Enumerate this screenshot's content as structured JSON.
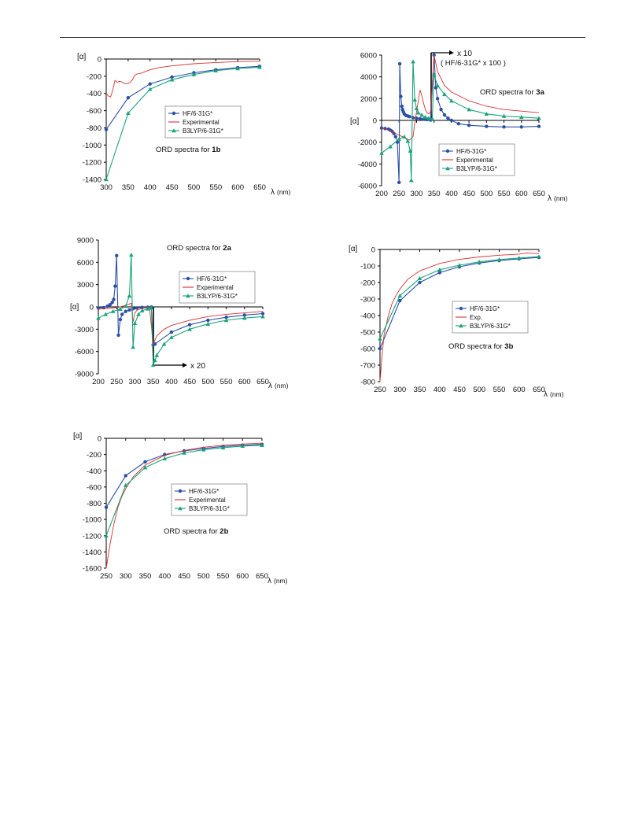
{
  "colors": {
    "hf": "#2a4fa8",
    "exp": "#d93030",
    "b3": "#1aa37a",
    "axis": "#000000"
  },
  "chart_data": [
    {
      "id": "1b",
      "type": "line",
      "title_prefix": "ORD spectra for ",
      "title_bold": "1b",
      "ylabel": "[α]",
      "xlabel": "λ",
      "xunit": "(nm)",
      "xlim": [
        300,
        650
      ],
      "ylim": [
        -1400,
        0
      ],
      "xticks": [
        300,
        350,
        400,
        450,
        500,
        550,
        600,
        650
      ],
      "yticks": [
        0,
        -200,
        -400,
        -600,
        -800,
        -1000,
        -1200,
        -1400
      ],
      "legend": [
        "HF/6-31G*",
        "Experimental",
        "B3LYP/6-31G*"
      ],
      "series": [
        {
          "name": "HF/6-31G*",
          "x": [
            300,
            350,
            400,
            450,
            500,
            550,
            600,
            650
          ],
          "y": [
            -820,
            -450,
            -290,
            -210,
            -160,
            -125,
            -100,
            -85
          ]
        },
        {
          "name": "Experimental",
          "x": [
            300,
            305,
            310,
            315,
            320,
            325,
            330,
            335,
            340,
            345,
            350,
            355,
            360,
            365,
            370,
            375,
            380,
            390,
            400,
            420,
            450,
            500,
            550,
            600,
            650
          ],
          "y": [
            -400,
            -430,
            -440,
            -360,
            -250,
            -270,
            -260,
            -265,
            -280,
            -290,
            -285,
            -270,
            -240,
            -190,
            -175,
            -170,
            -165,
            -145,
            -125,
            -100,
            -80,
            -55,
            -40,
            -30,
            -25
          ]
        },
        {
          "name": "B3LYP/6-31G*",
          "x": [
            300,
            350,
            400,
            450,
            500,
            550,
            600,
            650
          ],
          "y": [
            -1400,
            -630,
            -350,
            -240,
            -180,
            -135,
            -110,
            -95
          ]
        }
      ]
    },
    {
      "id": "3a",
      "type": "line",
      "title_prefix": "ORD spectra for ",
      "title_bold": "3a",
      "ylabel": "[α]",
      "xlabel": "λ",
      "xunit": "(nm)",
      "xlim": [
        200,
        650
      ],
      "ylim": [
        -6000,
        6000
      ],
      "xticks": [
        200,
        250,
        300,
        350,
        400,
        450,
        500,
        550,
        600,
        650
      ],
      "yticks": [
        6000,
        4000,
        2000,
        0,
        -2000,
        -4000,
        -6000
      ],
      "legend": [
        "HF/6-31G*",
        "Experimental",
        "B3LYP/6-31G*"
      ],
      "annotation": [
        "x 10",
        "( HF/6-31G*  x  100 )"
      ],
      "series": [
        {
          "name": "HF/6-31G*",
          "x": [
            200,
            210,
            220,
            225,
            230,
            235,
            240,
            245,
            250,
            252,
            255,
            258,
            260,
            262,
            265,
            270,
            275,
            280,
            290,
            300,
            310,
            320,
            330,
            340,
            350,
            355,
            360,
            370,
            380,
            390,
            400,
            420,
            450,
            500,
            550,
            600,
            650
          ],
          "y": [
            -700,
            -750,
            -800,
            -900,
            -1000,
            -1200,
            -1500,
            -2000,
            -5700,
            5200,
            2200,
            1300,
            1000,
            800,
            600,
            450,
            400,
            350,
            250,
            200,
            150,
            120,
            80,
            30,
            6500,
            3000,
            2000,
            1000,
            500,
            200,
            0,
            -300,
            -450,
            -550,
            -600,
            -600,
            -550
          ]
        },
        {
          "name": "Experimental",
          "x": [
            200,
            220,
            240,
            260,
            280,
            290,
            295,
            300,
            305,
            310,
            315,
            320,
            325,
            330,
            335,
            340,
            350,
            360,
            380,
            400,
            450,
            500,
            550,
            600,
            650
          ],
          "y": [
            -700,
            -900,
            -1200,
            -1500,
            -1800,
            -1500,
            -200,
            800,
            1800,
            2800,
            2300,
            1600,
            1000,
            700,
            600,
            800,
            6200,
            4500,
            3200,
            2600,
            1800,
            1300,
            1000,
            850,
            700
          ]
        },
        {
          "name": "B3LYP/6-31G*",
          "x": [
            200,
            225,
            250,
            265,
            275,
            282,
            285,
            290,
            295,
            300,
            305,
            315,
            325,
            335,
            345,
            350,
            360,
            380,
            400,
            450,
            500,
            550,
            600,
            650
          ],
          "y": [
            -3000,
            -2400,
            -1700,
            -1500,
            -1900,
            -2800,
            -5500,
            5400,
            1900,
            1100,
            700,
            500,
            300,
            200,
            150,
            4200,
            3200,
            2400,
            1800,
            1000,
            600,
            400,
            300,
            200
          ]
        }
      ]
    },
    {
      "id": "2a",
      "type": "line",
      "title_prefix": "ORD spectra for ",
      "title_bold": "2a",
      "ylabel": "[α]",
      "xlabel": "λ",
      "xunit": "(nm)",
      "xlim": [
        200,
        650
      ],
      "ylim": [
        -9000,
        9000
      ],
      "xticks": [
        200,
        250,
        300,
        350,
        400,
        450,
        500,
        550,
        600,
        650
      ],
      "yticks": [
        9000,
        6000,
        3000,
        0,
        -3000,
        -6000,
        -9000
      ],
      "legend": [
        "HF/6-31G*",
        "Experimental",
        "B3LYP/6-31G*"
      ],
      "annotation": [
        "x 20"
      ],
      "series": [
        {
          "name": "HF/6-31G*",
          "x": [
            200,
            215,
            225,
            232,
            238,
            242,
            246,
            250,
            255,
            260,
            265,
            275,
            285,
            295,
            305,
            320,
            335,
            345,
            350,
            355,
            400,
            450,
            500,
            550,
            600,
            650
          ],
          "y": [
            -150,
            -100,
            100,
            300,
            600,
            1000,
            2800,
            6900,
            -3800,
            -1700,
            -1000,
            -600,
            -400,
            -250,
            -150,
            -80,
            -50,
            -20,
            -5100,
            -5000,
            -3400,
            -2400,
            -1800,
            -1400,
            -1100,
            -900
          ]
        },
        {
          "name": "Experimental",
          "x": [
            200,
            230,
            260,
            280,
            290,
            295,
            300,
            305,
            310,
            320,
            330,
            340,
            350,
            360,
            380,
            400,
            450,
            500,
            550,
            600,
            650
          ],
          "y": [
            -300,
            -200,
            0,
            300,
            500,
            -2000,
            -800,
            -500,
            -350,
            -200,
            -100,
            -60,
            -5000,
            -3900,
            -3000,
            -2500,
            -1800,
            -1300,
            -1000,
            -800,
            -600
          ]
        },
        {
          "name": "B3LYP/6-31G*",
          "x": [
            200,
            220,
            240,
            260,
            275,
            285,
            290,
            295,
            300,
            310,
            320,
            335,
            345,
            350,
            355,
            360,
            380,
            400,
            450,
            500,
            550,
            600,
            650
          ],
          "y": [
            -1500,
            -1000,
            -600,
            -300,
            100,
            1500,
            7000,
            -5400,
            -2200,
            -1000,
            -500,
            -250,
            -120,
            -7800,
            -7200,
            -6500,
            -5000,
            -4100,
            -3000,
            -2300,
            -1800,
            -1500,
            -1300
          ]
        }
      ]
    },
    {
      "id": "3b",
      "type": "line",
      "title_prefix": "ORD spectra for ",
      "title_bold": "3b",
      "ylabel": "[α]",
      "xlabel": "λ",
      "xunit": "(nm)",
      "xlim": [
        250,
        650
      ],
      "ylim": [
        -800,
        0
      ],
      "xticks": [
        250,
        300,
        350,
        400,
        450,
        500,
        550,
        600,
        650
      ],
      "yticks": [
        0,
        -100,
        -200,
        -300,
        -400,
        -500,
        -600,
        -700,
        -800
      ],
      "legend": [
        "HF/6-31G*",
        "Exp.",
        "B3LYP/6-31G*"
      ],
      "series": [
        {
          "name": "HF/6-31G*",
          "x": [
            250,
            300,
            350,
            400,
            450,
            500,
            550,
            600,
            650
          ],
          "y": [
            -600,
            -310,
            -200,
            -140,
            -105,
            -82,
            -67,
            -57,
            -48
          ]
        },
        {
          "name": "Exp.",
          "x": [
            250,
            255,
            260,
            270,
            280,
            290,
            300,
            320,
            350,
            400,
            450,
            500,
            550,
            600,
            620,
            650
          ],
          "y": [
            -800,
            -650,
            -520,
            -410,
            -330,
            -280,
            -240,
            -180,
            -130,
            -85,
            -60,
            -45,
            -35,
            -28,
            -22,
            -25
          ]
        },
        {
          "name": "B3LYP/6-31G*",
          "x": [
            250,
            300,
            350,
            400,
            450,
            500,
            550,
            600,
            650
          ],
          "y": [
            -540,
            -280,
            -175,
            -123,
            -95,
            -75,
            -61,
            -52,
            -43
          ]
        }
      ]
    },
    {
      "id": "2b",
      "type": "line",
      "title_prefix": "ORD spectra for ",
      "title_bold": "2b",
      "ylabel": "[α]",
      "xlabel": "λ",
      "xunit": "(nm)",
      "xlim": [
        250,
        650
      ],
      "ylim": [
        -1600,
        0
      ],
      "xticks": [
        250,
        300,
        350,
        400,
        450,
        500,
        550,
        600,
        650
      ],
      "yticks": [
        0,
        -200,
        -400,
        -600,
        -800,
        -1000,
        -1200,
        -1400,
        -1600
      ],
      "legend": [
        "HF/6-31G*",
        "Experimental",
        "B3LYP/6-31G*"
      ],
      "series": [
        {
          "name": "HF/6-31G*",
          "x": [
            250,
            300,
            350,
            400,
            450,
            500,
            550,
            600,
            650
          ],
          "y": [
            -850,
            -460,
            -290,
            -200,
            -155,
            -125,
            -100,
            -85,
            -75
          ]
        },
        {
          "name": "Experimental",
          "x": [
            250,
            260,
            270,
            280,
            290,
            300,
            320,
            350,
            400,
            450,
            500,
            550,
            600,
            650
          ],
          "y": [
            -1600,
            -1300,
            -1050,
            -850,
            -720,
            -620,
            -470,
            -330,
            -210,
            -150,
            -110,
            -85,
            -70,
            -60
          ]
        },
        {
          "name": "B3LYP/6-31G*",
          "x": [
            250,
            300,
            350,
            400,
            450,
            500,
            550,
            600,
            650
          ],
          "y": [
            -1200,
            -580,
            -360,
            -250,
            -180,
            -140,
            -115,
            -95,
            -85
          ]
        }
      ]
    }
  ]
}
